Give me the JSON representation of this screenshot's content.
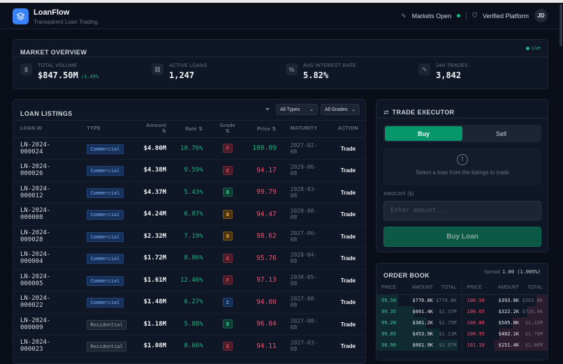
{
  "header": {
    "brand": "LoanFlow",
    "tagline": "Transparent Loan Trading",
    "market_status": "Markets Open",
    "verified": "Verified Platform",
    "avatar": "JD"
  },
  "overview": {
    "title": "MARKET OVERVIEW",
    "live": "Live",
    "stats": [
      {
        "icon": "dollar-icon",
        "glyph": "$",
        "label": "TOTAL VOLUME",
        "value": "$847.50M",
        "change": "↗1.49%"
      },
      {
        "icon": "bar-chart-icon",
        "glyph": "▥",
        "label": "ACTIVE LOANS",
        "value": "1,247"
      },
      {
        "icon": "percent-icon",
        "glyph": "%",
        "label": "AVG INTEREST RATE",
        "value": "5.82%"
      },
      {
        "icon": "activity-icon",
        "glyph": "∿",
        "label": "24H TRADES",
        "value": "3,842"
      }
    ]
  },
  "listings": {
    "title": "LOAN LISTINGS",
    "type_filter": "All Types",
    "grade_filter": "All Grades",
    "columns": [
      "LOAN ID",
      "TYPE",
      "Amount ⇅",
      "Rate ⇅",
      "Grade ⇅",
      "Price ⇅",
      "MATURITY",
      "ACTION"
    ],
    "rows": [
      {
        "id": "LN-2024-000024",
        "type": "Commercial",
        "amount": "$4.80M",
        "rate": "10.76%",
        "grade": "F",
        "price": "100.09",
        "maturity": "2027-02-08",
        "action": "Trade"
      },
      {
        "id": "LN-2024-000026",
        "type": "Commercial",
        "amount": "$4.38M",
        "rate": "9.59%",
        "grade": "E",
        "price": "94.17",
        "maturity": "2029-06-08",
        "action": "Trade"
      },
      {
        "id": "LN-2024-000012",
        "type": "Commercial",
        "amount": "$4.37M",
        "rate": "5.43%",
        "grade": "B",
        "price": "99.79",
        "maturity": "2028-03-08",
        "action": "Trade"
      },
      {
        "id": "LN-2024-000008",
        "type": "Commercial",
        "amount": "$4.24M",
        "rate": "6.87%",
        "grade": "D",
        "price": "94.47",
        "maturity": "2029-08-08",
        "action": "Trade"
      },
      {
        "id": "LN-2024-000028",
        "type": "Commercial",
        "amount": "$2.32M",
        "rate": "7.19%",
        "grade": "D",
        "price": "98.62",
        "maturity": "2027-06-08",
        "action": "Trade"
      },
      {
        "id": "LN-2024-000004",
        "type": "Commercial",
        "amount": "$1.72M",
        "rate": "8.86%",
        "grade": "E",
        "price": "95.76",
        "maturity": "2028-04-08",
        "action": "Trade"
      },
      {
        "id": "LN-2024-000005",
        "type": "Commercial",
        "amount": "$1.61M",
        "rate": "12.46%",
        "grade": "F",
        "price": "97.13",
        "maturity": "2030-05-08",
        "action": "Trade"
      },
      {
        "id": "LN-2024-000022",
        "type": "Commercial",
        "amount": "$1.48M",
        "rate": "6.27%",
        "grade": "C",
        "price": "94.00",
        "maturity": "2027-08-08",
        "action": "Trade"
      },
      {
        "id": "LN-2024-000009",
        "type": "Residential",
        "amount": "$1.18M",
        "rate": "5.88%",
        "grade": "B",
        "price": "96.04",
        "maturity": "2027-08-08",
        "action": "Trade"
      },
      {
        "id": "LN-2024-000023",
        "type": "Residential",
        "amount": "$1.08M",
        "rate": "8.66%",
        "grade": "E",
        "price": "94.11",
        "maturity": "2027-03-08",
        "action": "Trade"
      }
    ]
  },
  "trade": {
    "title": "TRADE EXECUTOR",
    "buy": "Buy",
    "sell": "Sell",
    "info": "Select a loan from the listings to trade",
    "amount_label": "AMOUNT ($)",
    "amount_placeholder": "Enter amount...",
    "amount_value": "",
    "submit": "Buy Loan"
  },
  "orderbook": {
    "title": "ORDER BOOK",
    "spread_label": "Spread:",
    "spread_value": "1.00 (1.005%)",
    "columns": [
      "PRICE",
      "AMOUNT",
      "TOTAL"
    ],
    "bids": [
      {
        "price": "99.50",
        "amount": "$770.8K",
        "total": "$770.8K"
      },
      {
        "price": "99.35",
        "amount": "$601.4K",
        "total": "$1.37M"
      },
      {
        "price": "99.20",
        "amount": "$381.2K",
        "total": "$1.75M"
      },
      {
        "price": "99.05",
        "amount": "$453.9K",
        "total": "$2.21M"
      },
      {
        "price": "98.90",
        "amount": "$661.9K",
        "total": "$2.87M"
      }
    ],
    "asks": [
      {
        "price": "100.50",
        "amount": "$393.8K",
        "total": "$393.8K"
      },
      {
        "price": "100.65",
        "amount": "$322.2K",
        "total": "$716.0K"
      },
      {
        "price": "100.80",
        "amount": "$505.8K",
        "total": "$1.22M"
      },
      {
        "price": "100.95",
        "amount": "$482.1K",
        "total": "$1.70M"
      },
      {
        "price": "101.10",
        "amount": "$151.4K",
        "total": "$1.86M"
      }
    ]
  },
  "colors": {
    "accent": "#3b82f6",
    "green": "#10b981",
    "red": "#f0506e",
    "bg": "#0a0e18",
    "card": "#0f1625"
  }
}
